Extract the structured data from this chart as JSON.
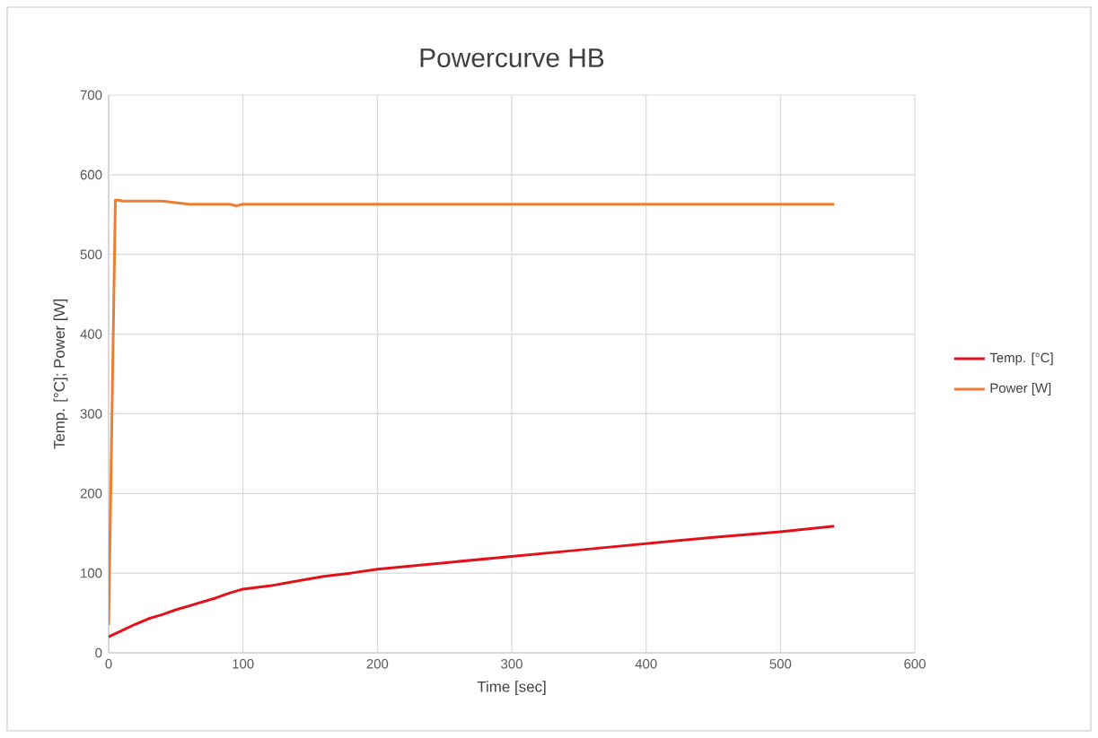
{
  "chart_data": {
    "type": "line",
    "title": "Powercurve HB",
    "xlabel": "Time [sec]",
    "ylabel": "Temp. [°C]; Power [W]",
    "xlim": [
      0,
      600
    ],
    "xticks": [
      0,
      100,
      200,
      300,
      400,
      500,
      600
    ],
    "ylim": [
      0,
      700
    ],
    "yticks": [
      0,
      100,
      200,
      300,
      400,
      500,
      600,
      700
    ],
    "grid": true,
    "legend": "right",
    "marker": "none",
    "line_style": "solid",
    "series": [
      {
        "name": "Temp. [°C]",
        "color": "#e3101a",
        "x": [
          0,
          10,
          20,
          30,
          40,
          50,
          60,
          70,
          80,
          90,
          100,
          120,
          140,
          160,
          180,
          200,
          250,
          300,
          350,
          400,
          450,
          500,
          540
        ],
        "values": [
          20,
          28,
          36,
          43,
          48,
          54,
          59,
          64,
          69,
          75,
          80,
          84,
          90,
          96,
          100,
          105,
          113,
          121,
          129,
          137,
          145,
          152,
          159
        ]
      },
      {
        "name": "Power [W]",
        "color": "#ed7d31",
        "x": [
          0,
          5,
          8,
          10,
          40,
          50,
          60,
          90,
          95,
          100,
          540
        ],
        "values": [
          35,
          568,
          568,
          567,
          567,
          565,
          563,
          563,
          561,
          563,
          563
        ]
      }
    ]
  }
}
